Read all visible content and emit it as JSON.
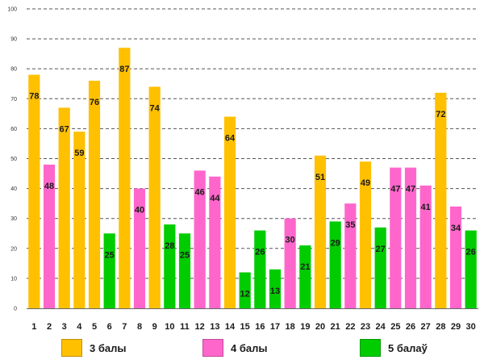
{
  "chart_data": {
    "type": "bar",
    "title": "",
    "xlabel": "",
    "ylabel": "",
    "ylim": [
      0,
      100
    ],
    "yticks": [
      0,
      10,
      20,
      30,
      40,
      50,
      60,
      70,
      80,
      90,
      100
    ],
    "grid": true,
    "categories": [
      "1",
      "2",
      "3",
      "4",
      "5",
      "6",
      "7",
      "8",
      "9",
      "10",
      "11",
      "12",
      "13",
      "14",
      "15",
      "16",
      "17",
      "18",
      "19",
      "20",
      "21",
      "22",
      "23",
      "24",
      "25",
      "26",
      "27",
      "28",
      "29",
      "30"
    ],
    "values": [
      78,
      48,
      67,
      59,
      76,
      25,
      87,
      40,
      74,
      28,
      25,
      46,
      44,
      64,
      12,
      26,
      13,
      30,
      21,
      51,
      29,
      35,
      49,
      27,
      47,
      47,
      41,
      72,
      34,
      26
    ],
    "groups": [
      "3",
      "4",
      "3",
      "3",
      "3",
      "5",
      "3",
      "4",
      "3",
      "5",
      "5",
      "4",
      "4",
      "3",
      "5",
      "5",
      "5",
      "4",
      "5",
      "3",
      "5",
      "4",
      "3",
      "5",
      "4",
      "4",
      "4",
      "3",
      "4",
      "5"
    ],
    "legend": [
      {
        "key": "3",
        "label": "3 балы",
        "color": "#FFC000"
      },
      {
        "key": "4",
        "label": "4 балы",
        "color": "#FF66CC"
      },
      {
        "key": "5",
        "label": "5 балаў",
        "color": "#00CC00"
      }
    ],
    "legend_position": "bottom"
  }
}
